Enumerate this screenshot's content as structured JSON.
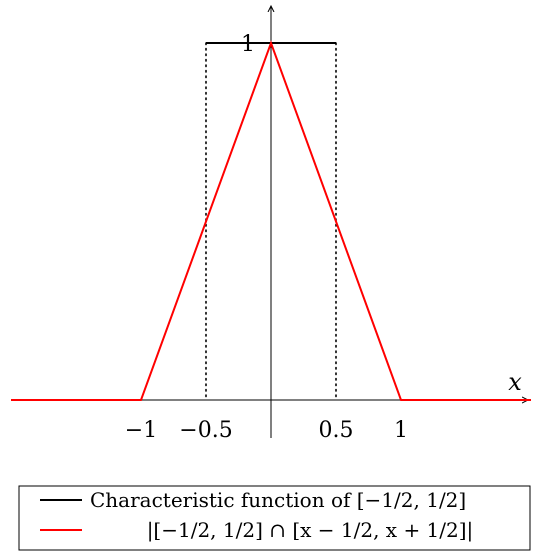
{
  "chart_data": {
    "type": "line",
    "title": "",
    "xlabel": "x",
    "ylabel": "",
    "xlim": [
      -2,
      2
    ],
    "ylim": [
      0,
      1.05
    ],
    "x_ticks": [
      {
        "value": -1,
        "label": "−1"
      },
      {
        "value": -0.5,
        "label": "−0.5"
      },
      {
        "value": 0.5,
        "label": "0.5"
      },
      {
        "value": 1,
        "label": "1"
      }
    ],
    "y_ticks": [
      {
        "value": 1,
        "label": "1"
      }
    ],
    "series": [
      {
        "name": "Characteristic function of [−1/2, 1/2]",
        "color": "#000000",
        "style": "solid",
        "x": [
          -0.5,
          0.5
        ],
        "y": [
          1,
          1
        ]
      },
      {
        "name": "|[−1/2, 1/2] ∩ [x − 1/2, x + 1/2]|",
        "color": "#ff0000",
        "style": "solid",
        "x": [
          -2,
          -1,
          0,
          1,
          2
        ],
        "y": [
          0,
          0,
          1,
          0,
          0
        ]
      }
    ],
    "guides": [
      {
        "x": -0.5,
        "style": "dotted",
        "color": "#000000"
      },
      {
        "x": 0.5,
        "style": "dotted",
        "color": "#000000"
      }
    ],
    "legend_position": "bottom"
  }
}
